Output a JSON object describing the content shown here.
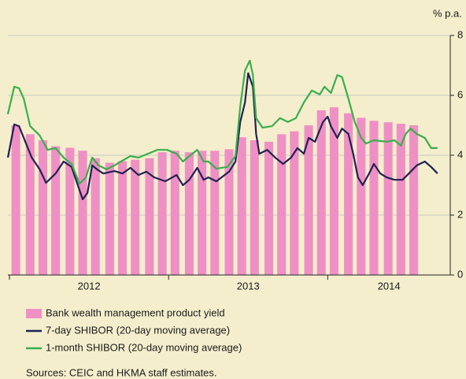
{
  "chart_data": {
    "type": "combo",
    "y_unit": "% p.a.",
    "xlim": [
      2011.99,
      2014.77
    ],
    "xticks": [
      {
        "value": 2012,
        "label": "2012"
      },
      {
        "value": 2013,
        "label": "2013"
      },
      {
        "value": 2014,
        "label": "2014"
      }
    ],
    "ylim": [
      0,
      8
    ],
    "yticks": [
      0,
      2,
      4,
      6,
      8
    ],
    "grid": true,
    "series": [
      {
        "name": "Bank wealth management product yield",
        "type": "bar",
        "color": "#ef90c5",
        "x": [
          2012.04,
          2012.13,
          2012.21,
          2012.29,
          2012.38,
          2012.46,
          2012.54,
          2012.63,
          2012.71,
          2012.79,
          2012.88,
          2012.96,
          2013.04,
          2013.13,
          2013.21,
          2013.29,
          2013.38,
          2013.46,
          2013.54,
          2013.63,
          2013.71,
          2013.79,
          2013.88,
          2013.96,
          2014.04,
          2014.13,
          2014.21,
          2014.29,
          2014.38,
          2014.46,
          2014.54
        ],
        "values": [
          5.0,
          4.7,
          4.5,
          4.3,
          4.25,
          4.15,
          3.9,
          3.75,
          3.8,
          3.85,
          3.9,
          4.1,
          4.15,
          4.1,
          4.15,
          4.15,
          4.2,
          4.6,
          4.5,
          4.45,
          4.7,
          4.8,
          5.0,
          5.5,
          5.6,
          5.4,
          5.25,
          5.15,
          5.1,
          5.05,
          5.0
        ]
      },
      {
        "name": "7-day SHIBOR (20-day moving average)",
        "type": "line",
        "color": "#1f2152",
        "x": [
          2011.99,
          2012.03,
          2012.06,
          2012.09,
          2012.14,
          2012.19,
          2012.23,
          2012.29,
          2012.34,
          2012.39,
          2012.43,
          2012.46,
          2012.49,
          2012.52,
          2012.55,
          2012.59,
          2012.66,
          2012.71,
          2012.76,
          2012.81,
          2012.86,
          2012.91,
          2012.98,
          2013.05,
          2013.09,
          2013.13,
          2013.18,
          2013.22,
          2013.25,
          2013.3,
          2013.38,
          2013.42,
          2013.45,
          2013.48,
          2013.5,
          2013.53,
          2013.55,
          2013.57,
          2013.62,
          2013.67,
          2013.72,
          2013.77,
          2013.81,
          2013.85,
          2013.88,
          2013.92,
          2013.97,
          2014.0,
          2014.02,
          2014.06,
          2014.09,
          2014.13,
          2014.16,
          2014.19,
          2014.22,
          2014.26,
          2014.29,
          2014.33,
          2014.37,
          2014.42,
          2014.47,
          2014.51,
          2014.56,
          2014.61,
          2014.65,
          2014.69
        ],
        "values": [
          3.92,
          5.03,
          4.97,
          4.58,
          3.92,
          3.53,
          3.08,
          3.39,
          3.79,
          3.61,
          3.0,
          2.53,
          2.74,
          3.66,
          3.53,
          3.39,
          3.47,
          3.39,
          3.58,
          3.34,
          3.45,
          3.26,
          3.13,
          3.34,
          3.0,
          3.18,
          3.58,
          3.18,
          3.26,
          3.13,
          3.45,
          3.79,
          5.11,
          5.76,
          6.74,
          6.29,
          4.71,
          4.05,
          4.18,
          3.92,
          3.71,
          3.92,
          4.24,
          4.05,
          4.58,
          4.45,
          5.11,
          5.29,
          4.97,
          4.58,
          4.89,
          4.71,
          4.05,
          3.26,
          3.0,
          3.39,
          3.71,
          3.39,
          3.26,
          3.18,
          3.18,
          3.39,
          3.66,
          3.79,
          3.61,
          3.39
        ]
      },
      {
        "name": "1-month SHIBOR (20-day moving average)",
        "type": "line",
        "color": "#3aae4c",
        "x": [
          2011.99,
          2012.03,
          2012.06,
          2012.09,
          2012.13,
          2012.19,
          2012.24,
          2012.29,
          2012.34,
          2012.39,
          2012.44,
          2012.48,
          2012.52,
          2012.56,
          2012.61,
          2012.66,
          2012.7,
          2012.76,
          2012.81,
          2012.87,
          2012.93,
          2012.99,
          2013.05,
          2013.09,
          2013.13,
          2013.18,
          2013.22,
          2013.25,
          2013.3,
          2013.37,
          2013.42,
          2013.45,
          2013.48,
          2013.51,
          2013.53,
          2013.55,
          2013.59,
          2013.65,
          2013.7,
          2013.75,
          2013.8,
          2013.85,
          2013.9,
          2013.95,
          2013.98,
          2014.02,
          2014.06,
          2014.09,
          2014.13,
          2014.17,
          2014.21,
          2014.24,
          2014.29,
          2014.37,
          2014.42,
          2014.46,
          2014.49,
          2014.52,
          2014.56,
          2014.61,
          2014.65,
          2014.69
        ],
        "values": [
          5.37,
          6.29,
          6.24,
          5.89,
          4.97,
          4.66,
          4.18,
          4.24,
          3.92,
          3.71,
          3.05,
          3.26,
          3.92,
          3.66,
          3.53,
          3.66,
          3.79,
          3.97,
          3.92,
          4.05,
          4.18,
          4.18,
          4.05,
          3.79,
          3.97,
          4.18,
          3.79,
          3.79,
          3.55,
          3.61,
          3.97,
          5.63,
          6.82,
          7.16,
          6.68,
          5.24,
          4.92,
          4.97,
          5.24,
          5.11,
          5.24,
          5.76,
          6.16,
          6.03,
          6.29,
          6.08,
          6.68,
          6.61,
          5.89,
          5.11,
          4.58,
          4.39,
          4.5,
          4.45,
          4.5,
          4.32,
          4.71,
          4.89,
          4.71,
          4.58,
          4.24,
          4.24
        ]
      }
    ],
    "source": "Sources: CEIC and HKMA staff estimates."
  }
}
